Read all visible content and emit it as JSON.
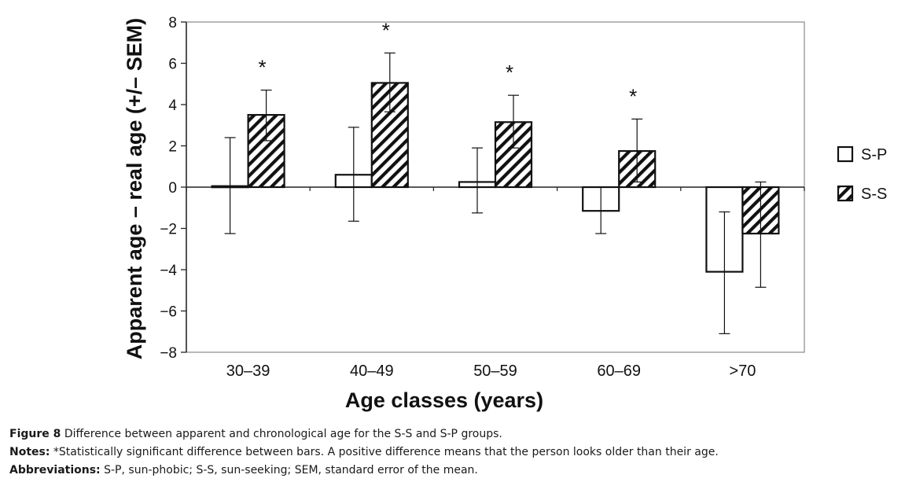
{
  "chart_data": {
    "type": "bar",
    "ylabel": "Apparent age – real age (+/– SEM)",
    "xlabel": "Age classes (years)",
    "categories": [
      "30–39",
      "40–49",
      "50–59",
      "60–69",
      ">70"
    ],
    "ylim": [
      -8,
      8
    ],
    "yticks": [
      8,
      6,
      4,
      2,
      0,
      -2,
      -4,
      -6,
      -8
    ],
    "ytick_labels": [
      "8",
      "6",
      "4",
      "2",
      "0",
      "−2",
      "−4",
      "−6",
      "−8"
    ],
    "grid": false,
    "legend_position": "right",
    "series": [
      {
        "name": "S-P",
        "fill": "plain",
        "values": [
          0.05,
          0.6,
          0.25,
          -1.15,
          -4.1
        ],
        "err_low": [
          -2.25,
          -1.65,
          -1.25,
          -2.25,
          -7.1
        ],
        "err_high": [
          2.4,
          2.9,
          1.9,
          0.0,
          -1.2
        ]
      },
      {
        "name": "S-S",
        "fill": "hatched",
        "values": [
          3.5,
          5.05,
          3.15,
          1.75,
          -2.25
        ],
        "err_low": [
          2.25,
          3.65,
          1.9,
          0.25,
          -4.85
        ],
        "err_high": [
          4.7,
          6.5,
          4.45,
          3.3,
          0.25
        ]
      }
    ],
    "significance_marker": "*",
    "significant": [
      true,
      true,
      true,
      true,
      false
    ]
  },
  "caption": {
    "figure_label": "Figure 8",
    "figure_text": " Difference between apparent and chronological age for the S-S and S-P groups.",
    "notes_label": "Notes:",
    "notes_text": " *Statistically significant difference between bars. A positive difference means that the person looks older than their age.",
    "abbr_label": "Abbreviations:",
    "abbr_text": " S-P, sun-phobic; S-S, sun-seeking; SEM, standard error of the mean."
  }
}
